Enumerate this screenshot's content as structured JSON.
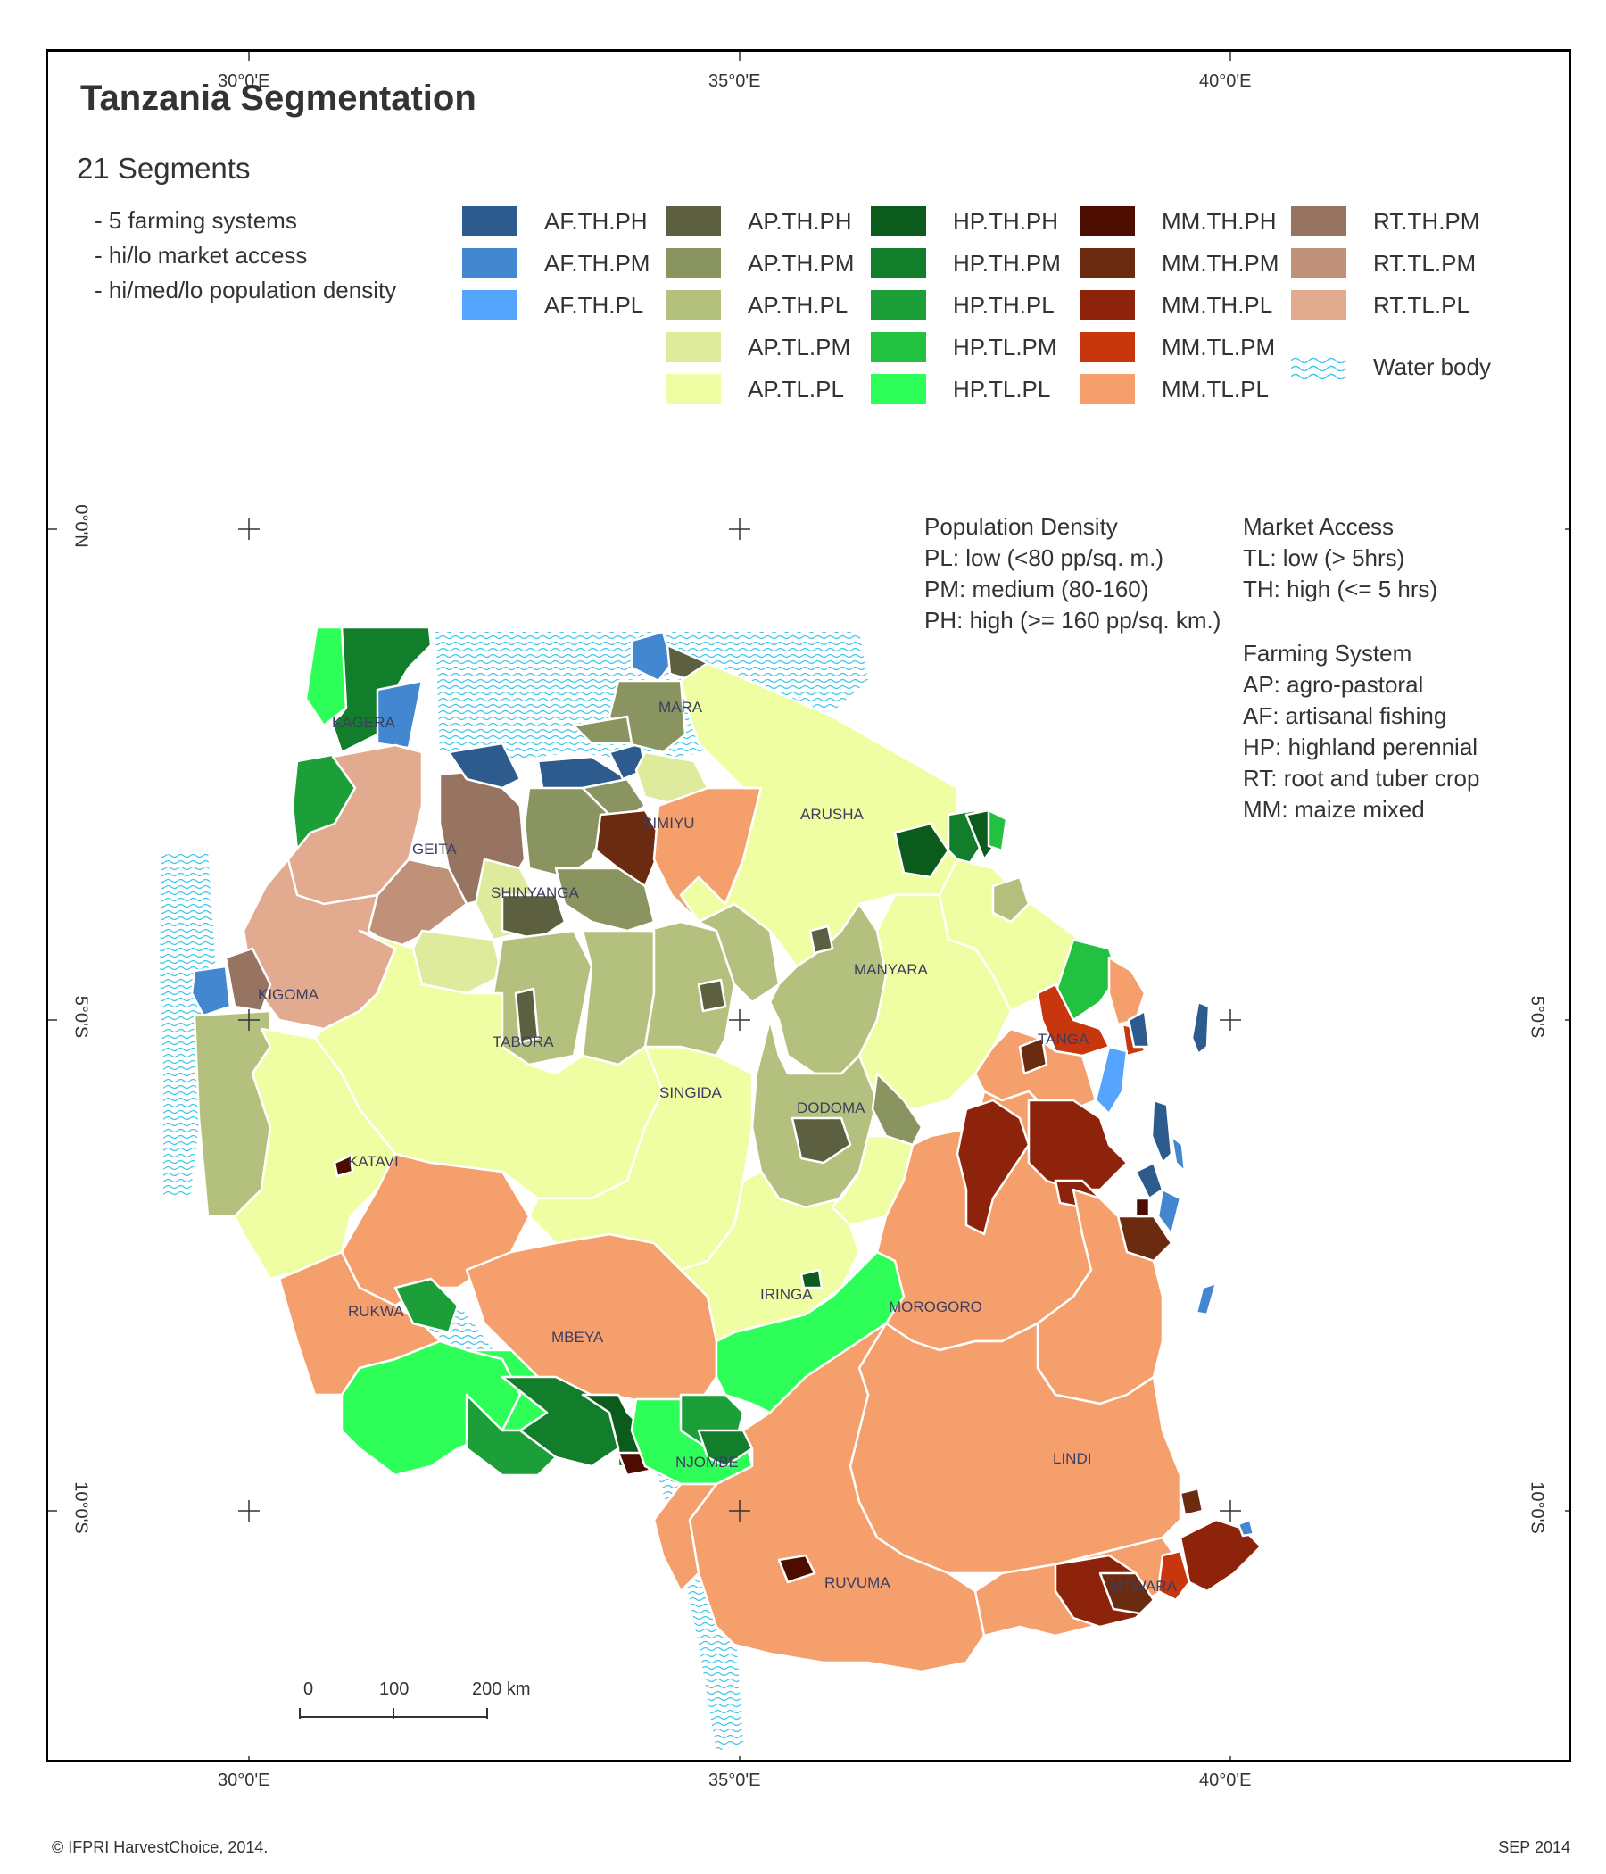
{
  "title": "Tanzania Segmentation",
  "subtitle": "21 Segments",
  "bullets": [
    "- 5 farming systems",
    "- hi/lo market access",
    "- hi/med/lo population density"
  ],
  "legend_segments": [
    [
      {
        "code": "AF.TH.PH",
        "color": "#2e5b8e"
      },
      {
        "code": "AF.TH.PM",
        "color": "#4287cf"
      },
      {
        "code": "AF.TH.PL",
        "color": "#55a5ff"
      }
    ],
    [
      {
        "code": "AP.TH.PH",
        "color": "#5c6040"
      },
      {
        "code": "AP.TH.PM",
        "color": "#8a9460"
      },
      {
        "code": "AP.TH.PL",
        "color": "#b4c17e"
      },
      {
        "code": "AP.TL.PM",
        "color": "#dfeb9c"
      },
      {
        "code": "AP.TL.PL",
        "color": "#effea3"
      }
    ],
    [
      {
        "code": "HP.TH.PH",
        "color": "#0b5c1c"
      },
      {
        "code": "HP.TH.PM",
        "color": "#127e2b"
      },
      {
        "code": "HP.TH.PL",
        "color": "#1c9e38"
      },
      {
        "code": "HP.TL.PM",
        "color": "#22c140"
      },
      {
        "code": "HP.TL.PL",
        "color": "#2eff58"
      }
    ],
    [
      {
        "code": "MM.TH.PH",
        "color": "#4d0c00"
      },
      {
        "code": "MM.TH.PM",
        "color": "#6a2b10"
      },
      {
        "code": "MM.TH.PL",
        "color": "#8e230b"
      },
      {
        "code": "MM.TL.PM",
        "color": "#c7360d"
      },
      {
        "code": "MM.TL.PL",
        "color": "#f5a06c"
      }
    ],
    [
      {
        "code": "RT.TH.PM",
        "color": "#977461"
      },
      {
        "code": "RT.TL.PM",
        "color": "#c09179"
      },
      {
        "code": "RT.TL.PL",
        "color": "#e2ab8f"
      }
    ]
  ],
  "water_label": "Water body",
  "water_color": "#3ec6e8",
  "population_density": {
    "heading": "Population Density",
    "lines": [
      "PL: low (<80 pp/sq. m.)",
      "PM: medium (80-160)",
      "PH: high (>= 160 pp/sq. km.)"
    ]
  },
  "market_access": {
    "heading": "Market Access",
    "lines": [
      "TL: low (> 5hrs)",
      "TH: high (<= 5 hrs)"
    ]
  },
  "farming_system": {
    "heading": "Farming System",
    "lines": [
      "AP: agro-pastoral",
      "AF: artisanal fishing",
      "HP: highland perennial",
      "RT: root and tuber crop",
      "MM: maize mixed"
    ]
  },
  "coords": {
    "lon_top": [
      "30°0'E",
      "35°0'E",
      "40°0'E"
    ],
    "lon_bottom": [
      "30°0'E",
      "35°0'E",
      "40°0'E"
    ],
    "lat_left": [
      "0°0'N",
      "5°0'S",
      "10°0'S"
    ],
    "lat_right": [
      "5°0'S",
      "10°0'S"
    ]
  },
  "regions": [
    "KAGERA",
    "MARA",
    "SIMIYU",
    "ARUSHA",
    "GEITA",
    "SHINYANGA",
    "KIGOMA",
    "TABORA",
    "MANYARA",
    "TANGA",
    "SINGIDA",
    "DODOMA",
    "KATAVI",
    "IRINGA",
    "MOROGORO",
    "RUKWA",
    "MBEYA",
    "NJOMBE",
    "LINDI",
    "RUVUMA",
    "MTWARA"
  ],
  "scale_labels": [
    "0",
    "100",
    "200 km"
  ],
  "footer_left": "© IFPRI HarvestChoice, 2014.",
  "footer_right": "SEP 2014"
}
